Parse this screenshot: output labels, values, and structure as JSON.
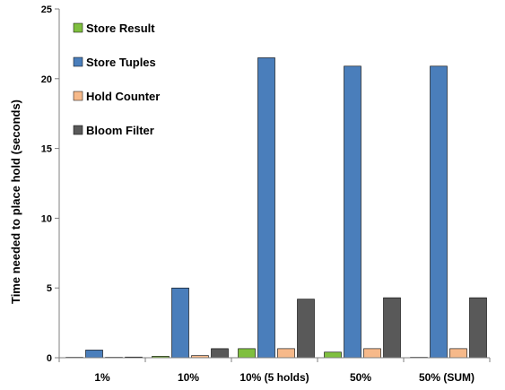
{
  "chart_data": {
    "type": "bar",
    "title": "",
    "xlabel": "",
    "ylabel": "Time needed to place hold (seconds)",
    "ylim": [
      0,
      25
    ],
    "yticks": [
      0,
      5,
      10,
      15,
      20,
      25
    ],
    "grid": false,
    "legend_position": "top-left",
    "categories": [
      "1%",
      "10%",
      "10% (5 holds)",
      "50%",
      "50% (SUM)"
    ],
    "series": [
      {
        "name": "Store Result",
        "color": "#7fbf3f",
        "values": [
          0.02,
          0.1,
          0.65,
          0.4,
          0.02
        ]
      },
      {
        "name": "Store Tuples",
        "color": "#4a7ebb",
        "values": [
          0.55,
          5.0,
          21.5,
          20.9,
          20.9
        ]
      },
      {
        "name": "Hold Counter",
        "color": "#f6b98a",
        "values": [
          0.02,
          0.15,
          0.65,
          0.65,
          0.65
        ]
      },
      {
        "name": "Bloom Filter",
        "color": "#595959",
        "values": [
          0.05,
          0.65,
          4.2,
          4.3,
          4.3
        ]
      }
    ]
  }
}
